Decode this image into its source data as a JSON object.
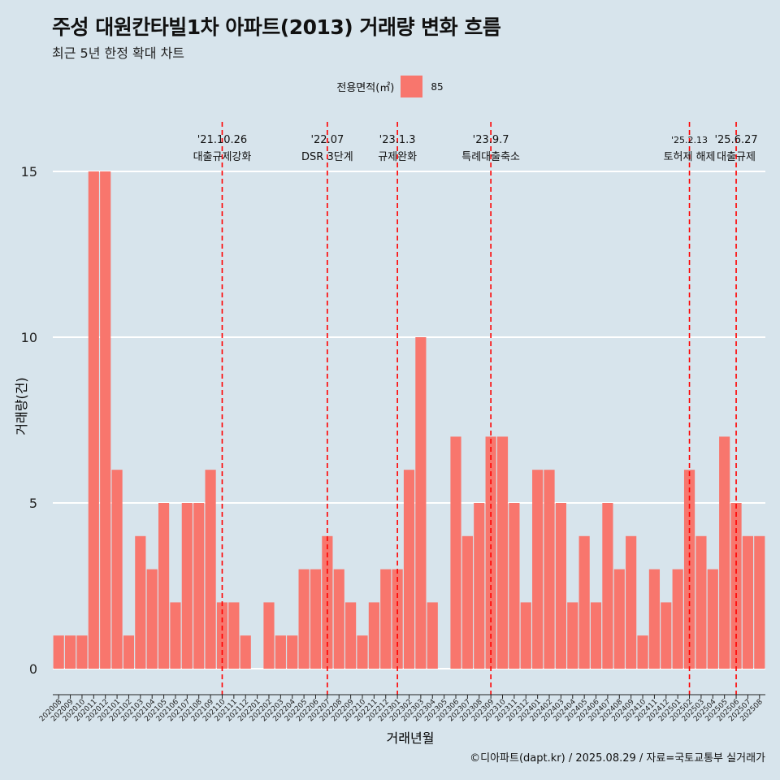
{
  "title": "주성 대원칸타빌1차 아파트(2013) 거래량 변화 흐름",
  "subtitle": "최근 5년 한정 확대 차트",
  "caption": "©디아파트(dapt.kr) / 2025.08.29 / 자료=국토교통부 실거래가",
  "colors": {
    "bar": "#f8766d",
    "event_line": "#ff0000",
    "grid": "#ffffff",
    "background": "#d7e4ec"
  },
  "chart_data": {
    "type": "bar",
    "xlabel": "거래년월",
    "ylabel": "거래량(건)",
    "ylim": [
      0,
      15
    ],
    "yticks": [
      0,
      5,
      10,
      15
    ],
    "legend": {
      "title": "전용면적(㎡)",
      "entries": [
        "85"
      ],
      "position": "top"
    },
    "categories": [
      "202008",
      "202009",
      "202010",
      "202011",
      "202012",
      "202101",
      "202102",
      "202103",
      "202104",
      "202105",
      "202106",
      "202107",
      "202108",
      "202109",
      "202110",
      "202111",
      "202112",
      "202201",
      "202202",
      "202203",
      "202204",
      "202205",
      "202206",
      "202207",
      "202208",
      "202209",
      "202210",
      "202211",
      "202212",
      "202301",
      "202302",
      "202303",
      "202304",
      "202305",
      "202306",
      "202307",
      "202308",
      "202309",
      "202310",
      "202311",
      "202312",
      "202401",
      "202402",
      "202403",
      "202404",
      "202405",
      "202406",
      "202407",
      "202408",
      "202409",
      "202410",
      "202411",
      "202412",
      "202501",
      "202502",
      "202503",
      "202504",
      "202505",
      "202506",
      "202507",
      "202508"
    ],
    "series": [
      {
        "name": "85",
        "values": [
          1,
          1,
          1,
          15,
          15,
          6,
          1,
          4,
          3,
          5,
          2,
          5,
          5,
          6,
          2,
          2,
          1,
          0,
          2,
          1,
          1,
          3,
          3,
          4,
          3,
          2,
          1,
          2,
          3,
          3,
          6,
          10,
          2,
          0,
          7,
          4,
          5,
          7,
          7,
          5,
          2,
          6,
          6,
          5,
          2,
          4,
          2,
          5,
          3,
          4,
          1,
          3,
          2,
          3,
          6,
          4,
          3,
          7,
          5,
          4,
          4
        ]
      }
    ],
    "events": [
      {
        "at": "202110",
        "date": "'21.10.26",
        "label": "대출규제강화"
      },
      {
        "at": "202207",
        "date": "'22.07",
        "label": "DSR 3단계"
      },
      {
        "at": "202301",
        "date": "'23.1.3",
        "label": "규제완화"
      },
      {
        "at": "202309",
        "date": "'23.9.7",
        "label": "특례대출축소"
      },
      {
        "at": "202502",
        "date": "'25.2.13",
        "label": "토허제 해제"
      },
      {
        "at": "202506",
        "date": "'25.6.27",
        "label": "대출규제"
      }
    ]
  }
}
